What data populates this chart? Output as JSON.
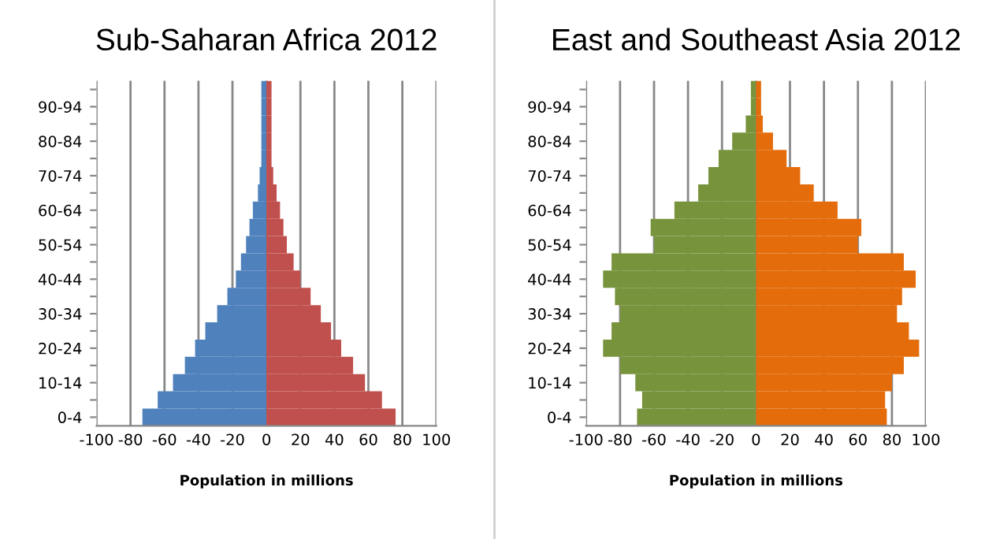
{
  "chart_data": [
    {
      "type": "bar",
      "orientation": "horizontal",
      "stacked": true,
      "title": "Sub-Saharan Africa 2012",
      "xlabel": "Population in millions",
      "categories": [
        null,
        "90-94",
        null,
        "80-84",
        null,
        "70-74",
        null,
        "60-64",
        null,
        "50-54",
        null,
        "40-44",
        null,
        "30-34",
        null,
        "20-24",
        null,
        "10-14",
        null,
        "0-4"
      ],
      "series": [
        {
          "color": "#4f81bd",
          "values": [
            -3,
            -3,
            -3,
            -3,
            -3,
            -4,
            -5,
            -8,
            -10,
            -12,
            -15,
            -18,
            -23,
            -29,
            -36,
            -42,
            -48,
            -55,
            -64,
            -73
          ]
        },
        {
          "color": "#c0504d",
          "values": [
            3,
            3,
            3,
            3,
            3,
            4,
            6,
            8,
            10,
            12,
            16,
            20,
            26,
            32,
            38,
            44,
            51,
            58,
            68,
            76
          ]
        }
      ],
      "xlim": [
        -100,
        100
      ],
      "xticks": [
        -100,
        -80,
        -60,
        -40,
        -20,
        0,
        20,
        40,
        60,
        80,
        100
      ],
      "grid": "x"
    },
    {
      "type": "bar",
      "orientation": "horizontal",
      "stacked": true,
      "title": "East and Southeast Asia 2012",
      "xlabel": "Population in millions",
      "categories": [
        null,
        "90-94",
        null,
        "80-84",
        null,
        "70-74",
        null,
        "60-64",
        null,
        "50-54",
        null,
        "40-44",
        null,
        "30-34",
        null,
        "20-24",
        null,
        "10-14",
        null,
        "0-4"
      ],
      "series": [
        {
          "color": "#77933c",
          "values": [
            -3,
            -3,
            -6,
            -14,
            -22,
            -28,
            -34,
            -48,
            -62,
            -60,
            -85,
            -90,
            -83,
            -80,
            -85,
            -90,
            -80,
            -71,
            -67,
            -70
          ]
        },
        {
          "color": "#e46c0a",
          "values": [
            3,
            3,
            4,
            10,
            18,
            26,
            34,
            48,
            62,
            60,
            87,
            94,
            86,
            83,
            90,
            96,
            87,
            80,
            76,
            77
          ]
        }
      ],
      "xlim": [
        -100,
        100
      ],
      "xticks": [
        -100,
        -80,
        -60,
        -40,
        -20,
        0,
        20,
        40,
        60,
        80,
        100
      ],
      "grid": "x"
    }
  ]
}
